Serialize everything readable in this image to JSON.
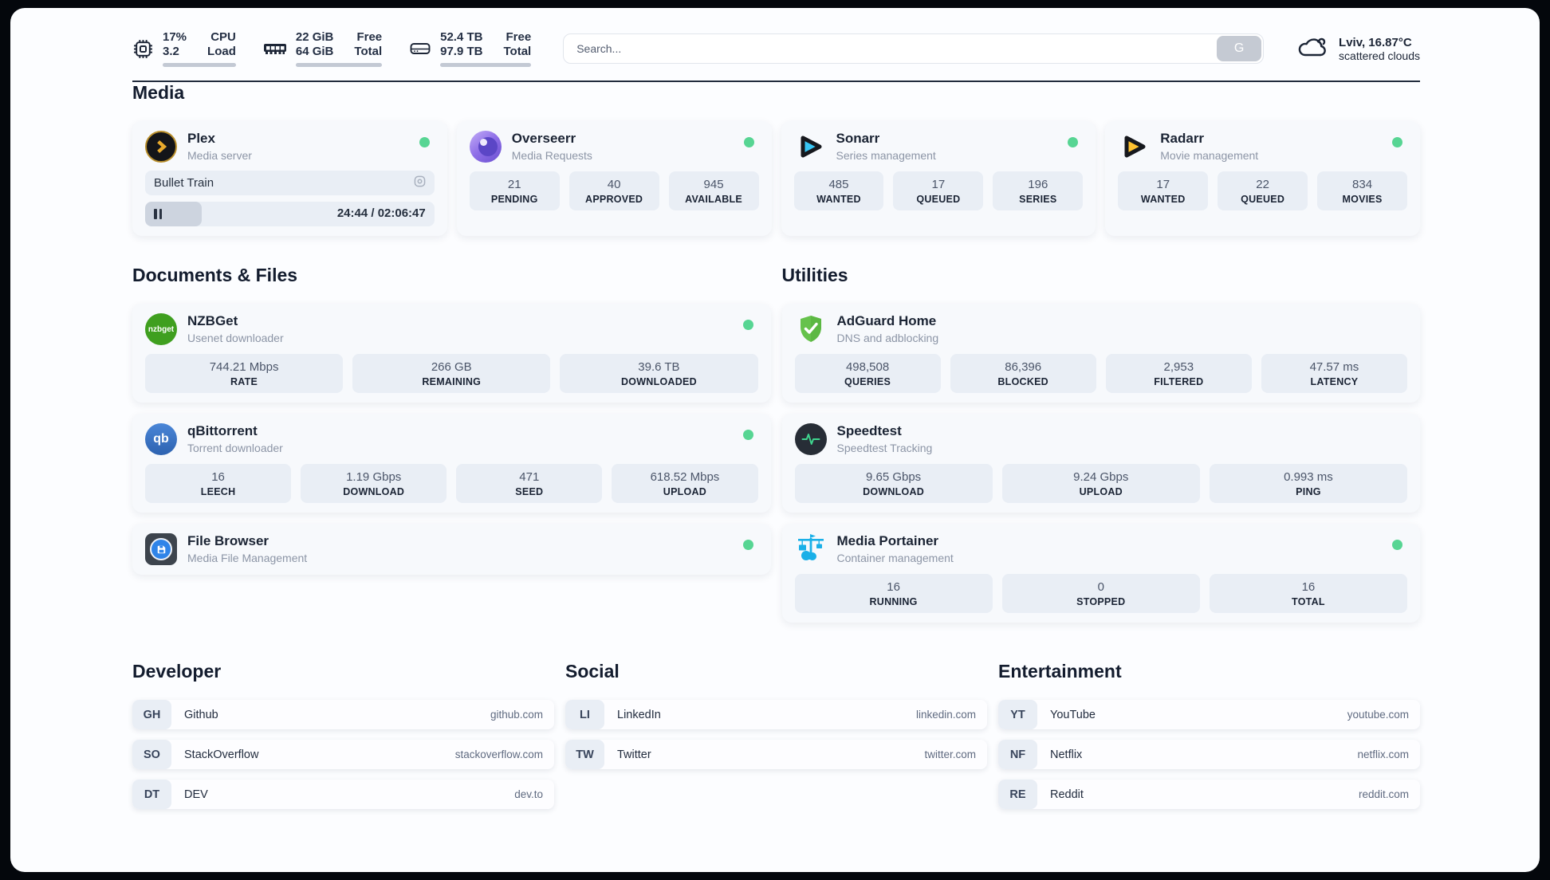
{
  "colors": {
    "status_online": "#57d593",
    "plex_gold": "#e8a92c",
    "sonarr_cyan": "#38c6f4",
    "radarr_gold": "#ffc230",
    "nzbget_green": "#3f9f1f",
    "qbittorrent_blue": "#3a76cc",
    "filebrowser_blue": "#2f84e8",
    "adguard_green": "#66c24c",
    "speedtest_pulse": "#3fd68f",
    "portainer_blue": "#1ab0e8"
  },
  "topbar": {
    "cpu": {
      "value1": "17%",
      "value2": "3.2",
      "label1": "CPU",
      "label2": "Load",
      "progress_pct": 17
    },
    "memory": {
      "value1": "22 GiB",
      "value2": "64 GiB",
      "label1": "Free",
      "label2": "Total",
      "progress_pct": 66
    },
    "storage": {
      "value1": "52.4 TB",
      "value2": "97.9 TB",
      "label1": "Free",
      "label2": "Total",
      "progress_pct": 46
    },
    "search": {
      "placeholder": "Search...",
      "button_label": "G"
    },
    "weather": {
      "headline": "Lviv, 16.87°C",
      "condition": "scattered clouds"
    }
  },
  "sections": {
    "media": {
      "title": "Media"
    },
    "documents": {
      "title": "Documents & Files"
    },
    "utilities": {
      "title": "Utilities"
    }
  },
  "apps": {
    "plex": {
      "name": "Plex",
      "description": "Media server",
      "now_playing": "Bullet Train",
      "time_display": "24:44 / 02:06:47",
      "progress_pct": 19.5
    },
    "overseerr": {
      "name": "Overseerr",
      "description": "Media Requests",
      "stats": [
        {
          "value": "21",
          "label": "PENDING"
        },
        {
          "value": "40",
          "label": "APPROVED"
        },
        {
          "value": "945",
          "label": "AVAILABLE"
        }
      ]
    },
    "sonarr": {
      "name": "Sonarr",
      "description": "Series management",
      "stats": [
        {
          "value": "485",
          "label": "WANTED"
        },
        {
          "value": "17",
          "label": "QUEUED"
        },
        {
          "value": "196",
          "label": "SERIES"
        }
      ]
    },
    "radarr": {
      "name": "Radarr",
      "description": "Movie management",
      "stats": [
        {
          "value": "17",
          "label": "WANTED"
        },
        {
          "value": "22",
          "label": "QUEUED"
        },
        {
          "value": "834",
          "label": "MOVIES"
        }
      ]
    },
    "nzbget": {
      "name": "NZBGet",
      "description": "Usenet downloader",
      "icon_text": "nzbget",
      "stats": [
        {
          "value": "744.21 Mbps",
          "label": "RATE"
        },
        {
          "value": "266 GB",
          "label": "REMAINING"
        },
        {
          "value": "39.6 TB",
          "label": "DOWNLOADED"
        }
      ]
    },
    "qbittorrent": {
      "name": "qBittorrent",
      "description": "Torrent downloader",
      "icon_text": "qb",
      "stats": [
        {
          "value": "16",
          "label": "LEECH"
        },
        {
          "value": "1.19 Gbps",
          "label": "DOWNLOAD"
        },
        {
          "value": "471",
          "label": "SEED"
        },
        {
          "value": "618.52 Mbps",
          "label": "UPLOAD"
        }
      ]
    },
    "filebrowser": {
      "name": "File Browser",
      "description": "Media File Management"
    },
    "adguard": {
      "name": "AdGuard Home",
      "description": "DNS and adblocking",
      "stats": [
        {
          "value": "498,508",
          "label": "QUERIES"
        },
        {
          "value": "86,396",
          "label": "BLOCKED"
        },
        {
          "value": "2,953",
          "label": "FILTERED"
        },
        {
          "value": "47.57 ms",
          "label": "LATENCY"
        }
      ]
    },
    "speedtest": {
      "name": "Speedtest",
      "description": "Speedtest Tracking",
      "stats": [
        {
          "value": "9.65 Gbps",
          "label": "DOWNLOAD"
        },
        {
          "value": "9.24 Gbps",
          "label": "UPLOAD"
        },
        {
          "value": "0.993 ms",
          "label": "PING"
        }
      ]
    },
    "portainer": {
      "name": "Media Portainer",
      "description": "Container management",
      "stats": [
        {
          "value": "16",
          "label": "RUNNING"
        },
        {
          "value": "0",
          "label": "STOPPED"
        },
        {
          "value": "16",
          "label": "TOTAL"
        }
      ]
    }
  },
  "links": {
    "developer": {
      "title": "Developer",
      "items": [
        {
          "abbr": "GH",
          "name": "Github",
          "url": "github.com"
        },
        {
          "abbr": "SO",
          "name": "StackOverflow",
          "url": "stackoverflow.com"
        },
        {
          "abbr": "DT",
          "name": "DEV",
          "url": "dev.to"
        }
      ]
    },
    "social": {
      "title": "Social",
      "items": [
        {
          "abbr": "LI",
          "name": "LinkedIn",
          "url": "linkedin.com"
        },
        {
          "abbr": "TW",
          "name": "Twitter",
          "url": "twitter.com"
        }
      ]
    },
    "entertainment": {
      "title": "Entertainment",
      "items": [
        {
          "abbr": "YT",
          "name": "YouTube",
          "url": "youtube.com"
        },
        {
          "abbr": "NF",
          "name": "Netflix",
          "url": "netflix.com"
        },
        {
          "abbr": "RE",
          "name": "Reddit",
          "url": "reddit.com"
        }
      ]
    }
  }
}
